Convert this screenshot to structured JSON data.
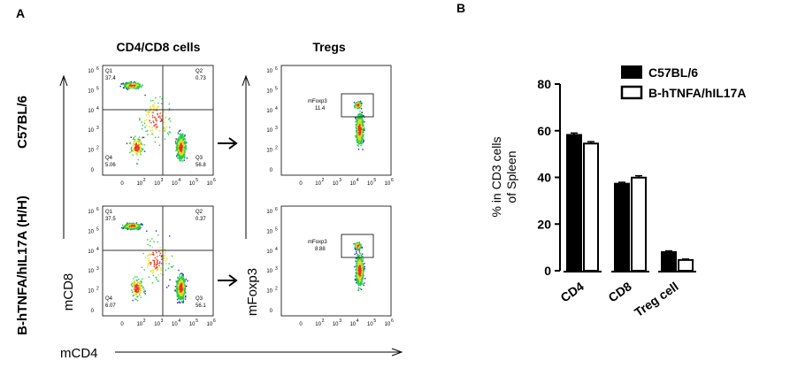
{
  "panel_a": {
    "label": "A",
    "title_left": "CD4/CD8 cells",
    "title_right": "Tregs",
    "row_labels": [
      "C57BL/6",
      "B-hTNFA/hIL17A (H/H)"
    ],
    "x_axis_label": "mCD4",
    "y_axis_label_left": "mCD8",
    "y_axis_label_right": "mFoxp3",
    "tick_labels": [
      "0",
      "10",
      "10",
      "10",
      "10",
      "10"
    ],
    "tick_exponents": [
      "",
      "2",
      "3",
      "4",
      "5",
      "6"
    ],
    "quadrants": [
      {
        "q1_name": "Q1",
        "q1": "37.4",
        "q2_name": "Q2",
        "q2": "0.73",
        "q3_name": "Q3",
        "q3": "56.8",
        "q4_name": "Q4",
        "q4": "5.06"
      },
      {
        "q1_name": "Q1",
        "q1": "37.5",
        "q2_name": "Q2",
        "q2": "0.37",
        "q3_name": "Q3",
        "q3": "56.1",
        "q4_name": "Q4",
        "q4": "6.07"
      }
    ],
    "tregs": [
      {
        "gate_name": "mFoxp3",
        "value": "11.4"
      },
      {
        "gate_name": "mFoxp3",
        "value": "8.88"
      }
    ],
    "colors": {
      "density_low": "#2222cc",
      "density_mid": "#22cc44",
      "density_high": "#dddd22",
      "density_peak": "#ee3322"
    }
  },
  "chart_data": {
    "type": "bar",
    "panel_label": "B",
    "categories": [
      "CD4",
      "CD8",
      "Treg cell"
    ],
    "series": [
      {
        "name": "C57BL/6",
        "values": [
          58.2,
          37.3,
          8.0
        ],
        "errors": [
          0.8,
          0.6,
          0.5
        ],
        "fill": "#000000"
      },
      {
        "name": "B-hTNFA/hIL17A",
        "values": [
          54.5,
          39.9,
          4.6
        ],
        "errors": [
          0.8,
          0.8,
          0.4
        ],
        "fill": "#ffffff"
      }
    ],
    "ylabel_line1": "% in CD3 cells",
    "ylabel_line2": "of Spleen",
    "ylim": [
      0,
      80
    ],
    "yticks": [
      "0",
      "20",
      "40",
      "60",
      "80"
    ],
    "legend_position": "top-right",
    "grid": false
  }
}
